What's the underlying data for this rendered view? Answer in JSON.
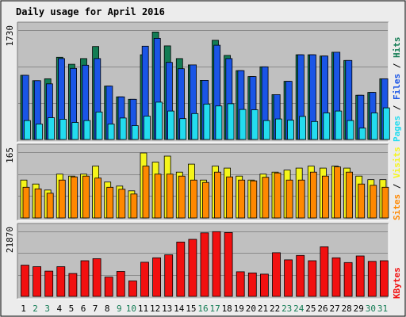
{
  "title": "Daily usage for April 2016",
  "colors": {
    "bg": "#ececec",
    "panel": "#c0c0c0",
    "title": "#0000c0",
    "hits": "#137c54",
    "files": "#1a55e6",
    "pages": "#23dcef",
    "visits": "#f5f51a",
    "sites": "#ff8800",
    "kbytes": "#f21010",
    "weekend": "#137c54",
    "weekday": "#000000",
    "separator": "#000000"
  },
  "chart_data": [
    {
      "type": "bar",
      "panel": "hits-files-pages",
      "ylim": [
        0,
        1730
      ],
      "ymax_label": "1730",
      "legend": {
        "pages": "Pages",
        "files": "Files",
        "hits": "Hits",
        "separator": " / "
      },
      "series": [
        {
          "name": "Hits",
          "values": [
            1015,
            930,
            960,
            1300,
            1190,
            1280,
            1470,
            845,
            675,
            635,
            1340,
            1700,
            1480,
            1280,
            1180,
            935,
            1570,
            1330,
            1090,
            995,
            1150,
            710,
            920,
            1340,
            1340,
            1320,
            1380,
            1250,
            700,
            745,
            960
          ]
        },
        {
          "name": "Files",
          "values": [
            1015,
            930,
            880,
            1280,
            1125,
            1175,
            1280,
            845,
            675,
            635,
            1475,
            1600,
            1220,
            1120,
            1180,
            935,
            1490,
            1280,
            1090,
            995,
            1150,
            710,
            920,
            1340,
            1340,
            1320,
            1380,
            1250,
            700,
            745,
            960
          ]
        },
        {
          "name": "Pages",
          "values": [
            300,
            245,
            345,
            320,
            270,
            300,
            435,
            245,
            340,
            220,
            370,
            590,
            450,
            330,
            410,
            560,
            530,
            565,
            475,
            470,
            300,
            325,
            305,
            365,
            285,
            420,
            450,
            300,
            180,
            420,
            500
          ]
        }
      ]
    },
    {
      "type": "bar",
      "panel": "sites-visits",
      "ylim": [
        0,
        165
      ],
      "ymax_label": "165",
      "legend": {
        "sites": "Sites",
        "visits": "Visits",
        "separator": " / "
      },
      "series": [
        {
          "name": "Visits",
          "values": [
            95,
            85,
            70,
            110,
            105,
            110,
            130,
            90,
            80,
            68,
            163,
            140,
            155,
            115,
            135,
            95,
            130,
            125,
            105,
            95,
            110,
            115,
            120,
            125,
            130,
            125,
            130,
            125,
            105,
            96,
            96
          ]
        },
        {
          "name": "Sites",
          "values": [
            77,
            73,
            62,
            95,
            103,
            105,
            100,
            77,
            72,
            60,
            130,
            110,
            110,
            105,
            95,
            89,
            115,
            103,
            95,
            93,
            102,
            113,
            95,
            95,
            115,
            105,
            128,
            115,
            85,
            82,
            77
          ]
        }
      ]
    },
    {
      "type": "bar",
      "panel": "kbytes",
      "ylim": [
        0,
        21870
      ],
      "ymax_label": "21870",
      "legend": {
        "kbytes": "KBytes"
      },
      "series": [
        {
          "name": "KBytes",
          "values": [
            10500,
            10000,
            8500,
            10000,
            7700,
            12000,
            12700,
            6500,
            8400,
            5200,
            11500,
            13000,
            14000,
            18300,
            19200,
            21400,
            21800,
            21500,
            8300,
            7900,
            7500,
            14700,
            12300,
            13800,
            12000,
            16700,
            13000,
            11400,
            13600,
            11800,
            12000
          ]
        }
      ]
    },
    {
      "type": "table",
      "panel": "days",
      "categories": [
        "1",
        "2",
        "3",
        "4",
        "5",
        "6",
        "7",
        "8",
        "9",
        "10",
        "11",
        "12",
        "13",
        "14",
        "15",
        "16",
        "17",
        "18",
        "19",
        "20",
        "21",
        "22",
        "23",
        "24",
        "25",
        "26",
        "27",
        "28",
        "29",
        "30",
        "31"
      ],
      "weekend_days": [
        "2",
        "3",
        "9",
        "10",
        "16",
        "17",
        "23",
        "24",
        "30",
        "31"
      ]
    }
  ]
}
